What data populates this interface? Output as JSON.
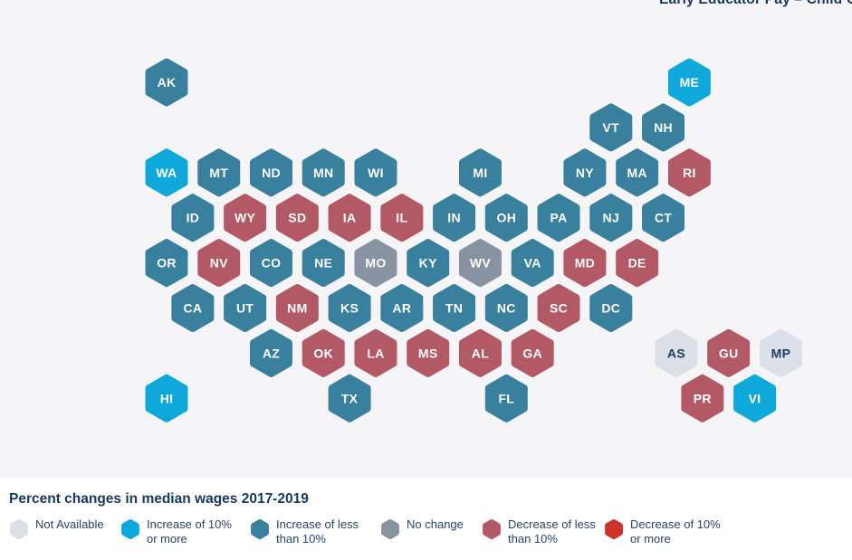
{
  "header": {
    "text": "Early Educator Pay – Child C"
  },
  "chart_data": {
    "type": "hexmap",
    "title": "Percent changes in median wages 2017-2019",
    "map_background": "#F5F4F6",
    "panel_background": "#FFFFFF",
    "title_color": "#17395C",
    "legend": [
      {
        "key": "na",
        "label": "Not Available",
        "color": "#DBDFE7",
        "text_color": "#1D3C5F"
      },
      {
        "key": "inc10",
        "label": "Increase of 10%\nor more",
        "color": "#0FA8DB",
        "text_color": "#FFFFFF"
      },
      {
        "key": "incLess",
        "label": "Increase of less\nthan 10%",
        "color": "#38809D",
        "text_color": "#FFFFFF"
      },
      {
        "key": "none",
        "label": "No change",
        "color": "#8893A1",
        "text_color": "#FFFFFF"
      },
      {
        "key": "decLess",
        "label": "Decrease of less\nthan 10%",
        "color": "#B25965",
        "text_color": "#FFFFFF"
      },
      {
        "key": "dec10",
        "label": "Decrease of 10%\nor more",
        "color": "#CB332C",
        "text_color": "#FFFFFF"
      }
    ],
    "states": [
      {
        "abbr": "AK",
        "row": 0,
        "col": 0,
        "cat": "incLess"
      },
      {
        "abbr": "ME",
        "row": 0,
        "col": 20,
        "cat": "inc10"
      },
      {
        "abbr": "VT",
        "row": 1,
        "col": 17,
        "cat": "incLess"
      },
      {
        "abbr": "NH",
        "row": 1,
        "col": 19,
        "cat": "incLess"
      },
      {
        "abbr": "WA",
        "row": 2,
        "col": 0,
        "cat": "inc10"
      },
      {
        "abbr": "MT",
        "row": 2,
        "col": 2,
        "cat": "incLess"
      },
      {
        "abbr": "ND",
        "row": 2,
        "col": 4,
        "cat": "incLess"
      },
      {
        "abbr": "MN",
        "row": 2,
        "col": 6,
        "cat": "incLess"
      },
      {
        "abbr": "WI",
        "row": 2,
        "col": 8,
        "cat": "incLess"
      },
      {
        "abbr": "MI",
        "row": 2,
        "col": 12,
        "cat": "incLess"
      },
      {
        "abbr": "NY",
        "row": 2,
        "col": 16,
        "cat": "incLess"
      },
      {
        "abbr": "MA",
        "row": 2,
        "col": 18,
        "cat": "incLess"
      },
      {
        "abbr": "RI",
        "row": 2,
        "col": 20,
        "cat": "decLess"
      },
      {
        "abbr": "ID",
        "row": 3,
        "col": 1,
        "cat": "incLess"
      },
      {
        "abbr": "WY",
        "row": 3,
        "col": 3,
        "cat": "decLess"
      },
      {
        "abbr": "SD",
        "row": 3,
        "col": 5,
        "cat": "decLess"
      },
      {
        "abbr": "IA",
        "row": 3,
        "col": 7,
        "cat": "decLess"
      },
      {
        "abbr": "IL",
        "row": 3,
        "col": 9,
        "cat": "decLess"
      },
      {
        "abbr": "IN",
        "row": 3,
        "col": 11,
        "cat": "incLess"
      },
      {
        "abbr": "OH",
        "row": 3,
        "col": 13,
        "cat": "incLess"
      },
      {
        "abbr": "PA",
        "row": 3,
        "col": 15,
        "cat": "incLess"
      },
      {
        "abbr": "NJ",
        "row": 3,
        "col": 17,
        "cat": "incLess"
      },
      {
        "abbr": "CT",
        "row": 3,
        "col": 19,
        "cat": "incLess"
      },
      {
        "abbr": "OR",
        "row": 4,
        "col": 0,
        "cat": "incLess"
      },
      {
        "abbr": "NV",
        "row": 4,
        "col": 2,
        "cat": "decLess"
      },
      {
        "abbr": "CO",
        "row": 4,
        "col": 4,
        "cat": "incLess"
      },
      {
        "abbr": "NE",
        "row": 4,
        "col": 6,
        "cat": "incLess"
      },
      {
        "abbr": "MO",
        "row": 4,
        "col": 8,
        "cat": "none"
      },
      {
        "abbr": "KY",
        "row": 4,
        "col": 10,
        "cat": "incLess"
      },
      {
        "abbr": "WV",
        "row": 4,
        "col": 12,
        "cat": "none"
      },
      {
        "abbr": "VA",
        "row": 4,
        "col": 14,
        "cat": "incLess"
      },
      {
        "abbr": "MD",
        "row": 4,
        "col": 16,
        "cat": "decLess"
      },
      {
        "abbr": "DE",
        "row": 4,
        "col": 18,
        "cat": "decLess"
      },
      {
        "abbr": "CA",
        "row": 5,
        "col": 1,
        "cat": "incLess"
      },
      {
        "abbr": "UT",
        "row": 5,
        "col": 3,
        "cat": "incLess"
      },
      {
        "abbr": "NM",
        "row": 5,
        "col": 5,
        "cat": "decLess"
      },
      {
        "abbr": "KS",
        "row": 5,
        "col": 7,
        "cat": "incLess"
      },
      {
        "abbr": "AR",
        "row": 5,
        "col": 9,
        "cat": "incLess"
      },
      {
        "abbr": "TN",
        "row": 5,
        "col": 11,
        "cat": "incLess"
      },
      {
        "abbr": "NC",
        "row": 5,
        "col": 13,
        "cat": "incLess"
      },
      {
        "abbr": "SC",
        "row": 5,
        "col": 15,
        "cat": "decLess"
      },
      {
        "abbr": "DC",
        "row": 5,
        "col": 17,
        "cat": "incLess"
      },
      {
        "abbr": "AZ",
        "row": 6,
        "col": 4,
        "cat": "incLess"
      },
      {
        "abbr": "OK",
        "row": 6,
        "col": 6,
        "cat": "decLess"
      },
      {
        "abbr": "LA",
        "row": 6,
        "col": 8,
        "cat": "decLess"
      },
      {
        "abbr": "MS",
        "row": 6,
        "col": 10,
        "cat": "decLess"
      },
      {
        "abbr": "AL",
        "row": 6,
        "col": 12,
        "cat": "decLess"
      },
      {
        "abbr": "GA",
        "row": 6,
        "col": 14,
        "cat": "decLess"
      },
      {
        "abbr": "AS",
        "row": 6,
        "col": 19.5,
        "cat": "na"
      },
      {
        "abbr": "GU",
        "row": 6,
        "col": 21.5,
        "cat": "decLess"
      },
      {
        "abbr": "MP",
        "row": 6,
        "col": 23.5,
        "cat": "na"
      },
      {
        "abbr": "HI",
        "row": 7,
        "col": 0,
        "cat": "inc10"
      },
      {
        "abbr": "TX",
        "row": 7,
        "col": 7,
        "cat": "incLess"
      },
      {
        "abbr": "FL",
        "row": 7,
        "col": 13,
        "cat": "incLess"
      },
      {
        "abbr": "PR",
        "row": 7,
        "col": 20.5,
        "cat": "decLess"
      },
      {
        "abbr": "VI",
        "row": 7,
        "col": 22.5,
        "cat": "inc10"
      }
    ]
  }
}
